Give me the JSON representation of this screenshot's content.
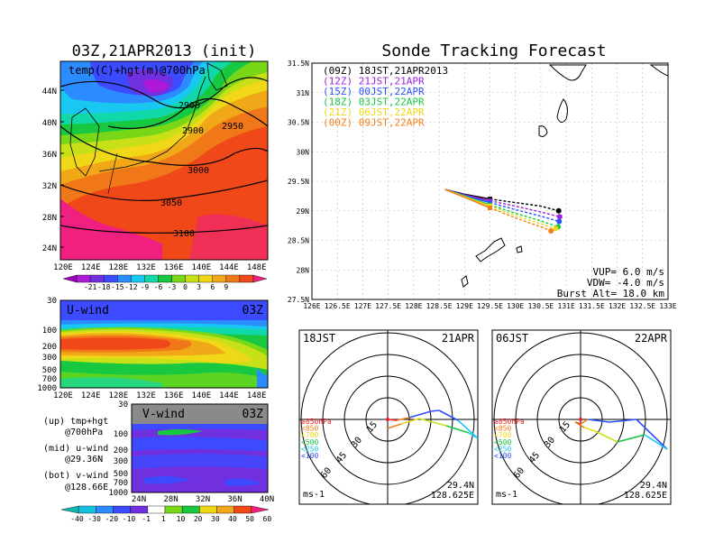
{
  "colors": {
    "scale": [
      "#9b00c0",
      "#b018d8",
      "#7030e0",
      "#3c4bff",
      "#2a8cff",
      "#18c8f0",
      "#10d8a8",
      "#18c840",
      "#78d818",
      "#c8e018",
      "#f0d818",
      "#f0a818",
      "#f07818",
      "#f04818",
      "#f02080"
    ],
    "vwind_scale": [
      "#10b8b0",
      "#18c0e0",
      "#2a8cff",
      "#3c4bff",
      "#7030e0",
      "#ffffff",
      "#78d818",
      "#18c840",
      "#f0d818",
      "#f0a818",
      "#f04818",
      "#f02080"
    ],
    "track": [
      "#000000",
      "#a020e0",
      "#2a50ff",
      "#18c840",
      "#f0d818",
      "#f08018"
    ]
  },
  "left": {
    "map_title": "03Z,21APR2013 (init)",
    "map_label": "temp(C)+hgt(m)@700hPa",
    "contours": [
      "2900",
      "2900",
      "2950",
      "3000",
      "3050",
      "3100"
    ],
    "map_lat_ticks": [
      "44N",
      "40N",
      "36N",
      "32N",
      "28N",
      "24N"
    ],
    "map_lon_ticks": [
      "120E",
      "124E",
      "128E",
      "132E",
      "136E",
      "140E",
      "144E",
      "148E"
    ],
    "temp_colorbar": [
      "-21",
      "-18",
      "-15",
      "-12",
      "-9",
      "-6",
      "-3",
      "0",
      "3",
      "6",
      "9"
    ],
    "uwind_label": "U-wind",
    "uwind_time": "03Z",
    "pressure_ticks": [
      "30",
      "100",
      "200",
      "300",
      "500",
      "700",
      "1000"
    ],
    "uwind_lon_ticks": [
      "120E",
      "124E",
      "128E",
      "132E",
      "136E",
      "140E",
      "144E",
      "148E"
    ],
    "vwind_label": "V-wind",
    "vwind_time": "03Z",
    "vwind_p_ticks": [
      "30",
      "100",
      "200",
      "300",
      "500",
      "700",
      "1000"
    ],
    "vwind_lat_ticks": [
      "24N",
      "28N",
      "32N",
      "36N",
      "40N"
    ],
    "legend_up": "(up) tmp+hgt",
    "legend_up2": "@700hPa",
    "legend_mid": "(mid) u-wind",
    "legend_mid2": "@29.36N",
    "legend_bot": "(bot) v-wind",
    "legend_bot2": "@128.66E",
    "wind_colorbar": [
      "-40",
      "-30",
      "-20",
      "-10",
      "-1",
      "1",
      "10",
      "20",
      "30",
      "40",
      "50",
      "60"
    ]
  },
  "chart_data": {
    "type": "line",
    "title": "Sonde Tracking Forecast",
    "xlabel": "",
    "ylabel": "",
    "xlim": [
      126,
      133
    ],
    "ylim": [
      27.5,
      31.5
    ],
    "x_ticks": [
      "126E",
      "126.5E",
      "127E",
      "127.5E",
      "128E",
      "128.5E",
      "129E",
      "129.5E",
      "130E",
      "130.5E",
      "131E",
      "131.5E",
      "132E",
      "132.5E",
      "133E"
    ],
    "y_ticks": [
      "31.5N",
      "31N",
      "30.5N",
      "30N",
      "29.5N",
      "29N",
      "28.5N",
      "28N",
      "27.5N"
    ],
    "legend_placement": "top-left",
    "series": [
      {
        "name": "(09Z)  18JST,21APR2013",
        "x": [
          128.62,
          129.0,
          129.5,
          130.0,
          130.5,
          130.85
        ],
        "y": [
          29.36,
          29.28,
          29.2,
          29.14,
          29.08,
          29.0
        ]
      },
      {
        "name": "(12Z)  21JST,21APR",
        "x": [
          128.62,
          129.0,
          129.5,
          130.0,
          130.5,
          130.87
        ],
        "y": [
          29.36,
          29.27,
          29.17,
          29.08,
          28.98,
          28.9
        ]
      },
      {
        "name": "(15Z)  00JST,22APR",
        "x": [
          128.62,
          129.0,
          129.5,
          130.0,
          130.5,
          130.86
        ],
        "y": [
          29.36,
          29.26,
          29.14,
          29.02,
          28.91,
          28.82
        ]
      },
      {
        "name": "(18Z)  03JST,22APR",
        "x": [
          128.62,
          129.0,
          129.5,
          130.0,
          130.5,
          130.84
        ],
        "y": [
          29.36,
          29.25,
          29.1,
          28.96,
          28.83,
          28.73
        ]
      },
      {
        "name": "(21Z)  06JST,22APR",
        "x": [
          128.62,
          129.0,
          129.5,
          130.0,
          130.5,
          130.79
        ],
        "y": [
          29.36,
          29.24,
          29.08,
          28.92,
          28.78,
          28.7
        ]
      },
      {
        "name": "(00Z)  09JST,22APR",
        "x": [
          128.62,
          129.0,
          129.5,
          130.0,
          130.5,
          130.7
        ],
        "y": [
          29.36,
          29.23,
          29.05,
          28.88,
          28.73,
          28.66
        ]
      }
    ],
    "annotations": [
      "VUP= 6.0 m/s",
      "VDW= -4.0 m/s",
      "Burst Alt= 18.0 km"
    ]
  },
  "hodographs": [
    {
      "time": "18JST",
      "date": "21APR",
      "ring_labels": [
        "15",
        "30",
        "45",
        "60"
      ],
      "unit": "ms-1",
      "lat": "29.4N",
      "lon": "128.625E",
      "layers": [
        "≥850hPa",
        "<850",
        "<700",
        "<500",
        "<250",
        "<100"
      ]
    },
    {
      "time": "06JST",
      "date": "22APR",
      "ring_labels": [
        "15",
        "30",
        "45",
        "60"
      ],
      "unit": "ms-1",
      "lat": "29.4N",
      "lon": "128.625E",
      "layers": [
        "≥850hPa",
        "<850",
        "<700",
        "<500",
        "<250",
        "<100"
      ]
    }
  ]
}
